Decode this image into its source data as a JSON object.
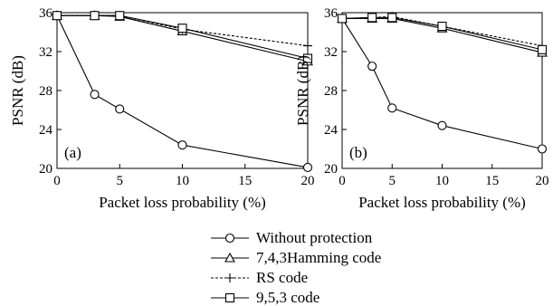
{
  "chart_data": [
    {
      "type": "line",
      "panel_label": "(a)",
      "x": [
        0,
        3,
        5,
        10,
        20
      ],
      "xlabel": "Packet loss probability (%)",
      "ylabel": "PSNR (dB)",
      "xlim": [
        0,
        20
      ],
      "ylim": [
        20,
        36
      ],
      "xticks": [
        0,
        5,
        10,
        15,
        20
      ],
      "yticks": [
        20,
        24,
        28,
        32,
        36
      ],
      "grid": false,
      "series": [
        {
          "name": "Without protection",
          "marker": "circle",
          "dash": "solid",
          "values": [
            35.7,
            27.6,
            26.1,
            22.4,
            20.1
          ]
        },
        {
          "name": "7,4,3Hamming code",
          "marker": "triangle",
          "dash": "solid",
          "values": [
            35.7,
            35.7,
            35.6,
            34.1,
            31.0
          ]
        },
        {
          "name": "RS code",
          "marker": "plus",
          "dash": "dotted",
          "values": [
            35.7,
            35.7,
            35.7,
            34.3,
            32.6
          ]
        },
        {
          "name": "9,5,3 code",
          "marker": "square",
          "dash": "solid",
          "values": [
            35.7,
            35.7,
            35.7,
            34.4,
            31.3
          ]
        }
      ]
    },
    {
      "type": "line",
      "panel_label": "(b)",
      "x": [
        0,
        3,
        5,
        10,
        20
      ],
      "xlabel": "Packet loss probability (%)",
      "ylabel": "PSNR (dB)",
      "xlim": [
        0,
        20
      ],
      "ylim": [
        20,
        36
      ],
      "xticks": [
        0,
        5,
        10,
        15,
        20
      ],
      "yticks": [
        20,
        24,
        28,
        32,
        36
      ],
      "grid": false,
      "series": [
        {
          "name": "Without protection",
          "marker": "circle",
          "dash": "solid",
          "values": [
            35.4,
            30.5,
            26.2,
            24.4,
            22.0
          ]
        },
        {
          "name": "7,4,3Hamming code",
          "marker": "triangle",
          "dash": "solid",
          "values": [
            35.4,
            35.4,
            35.4,
            34.4,
            31.9
          ]
        },
        {
          "name": "RS code",
          "marker": "plus",
          "dash": "dotted",
          "values": [
            35.4,
            35.5,
            35.6,
            34.6,
            32.6
          ]
        },
        {
          "name": "9,5,3 code",
          "marker": "square",
          "dash": "solid",
          "values": [
            35.4,
            35.5,
            35.5,
            34.6,
            32.2
          ]
        }
      ]
    }
  ],
  "legend": {
    "placement": "bottom-center",
    "entries": [
      {
        "label": "Without protection",
        "marker": "circle",
        "dash": "solid"
      },
      {
        "label": "7,4,3Hamming code",
        "marker": "triangle",
        "dash": "solid"
      },
      {
        "label": "RS code",
        "marker": "plus",
        "dash": "dotted"
      },
      {
        "label": "9,5,3 code",
        "marker": "square",
        "dash": "solid"
      }
    ]
  },
  "colors": {
    "ink": "#000000",
    "background": "#ffffff"
  }
}
